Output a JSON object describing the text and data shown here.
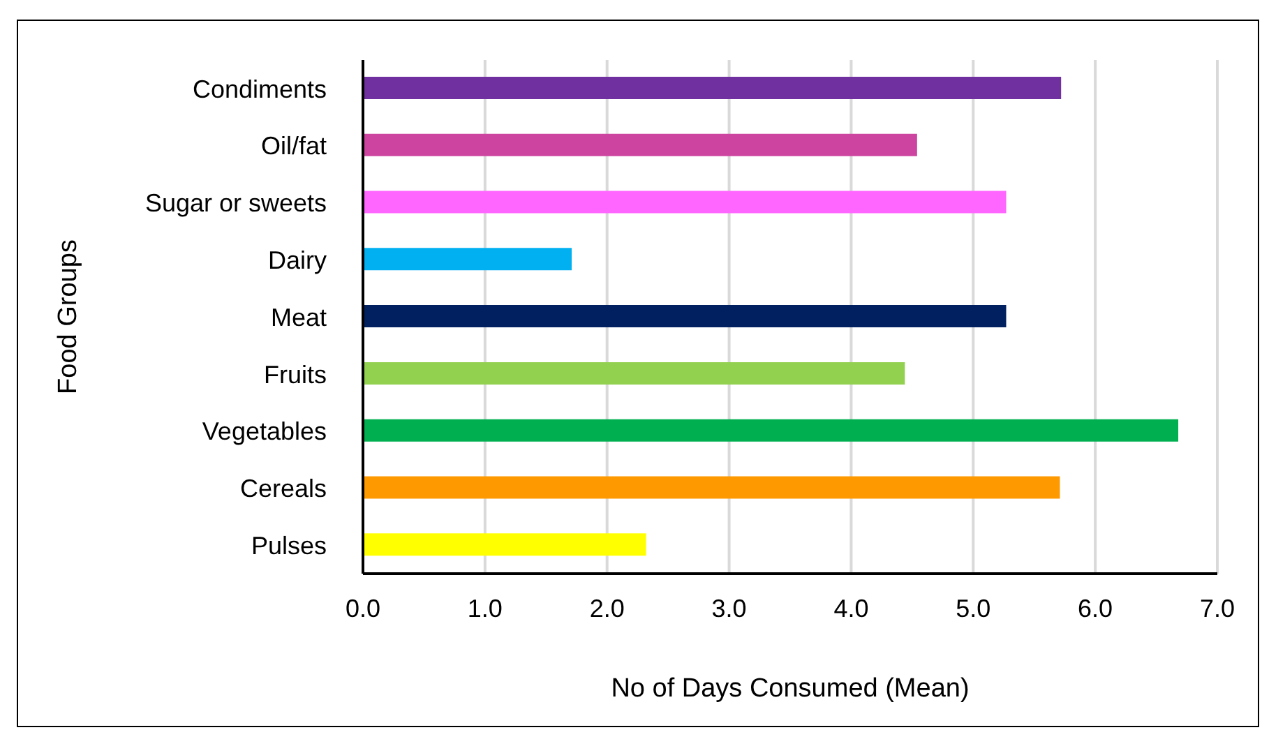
{
  "chart_data": {
    "type": "bar",
    "orientation": "horizontal",
    "xlabel": "No of Days  Consumed (Mean)",
    "ylabel": "Food Groups",
    "categories": [
      "Condiments",
      "Oil/fat",
      "Sugar or sweets",
      "Dairy",
      "Meat",
      "Fruits",
      "Vegetables",
      "Cereals",
      "Pulses"
    ],
    "values": [
      5.72,
      4.54,
      5.27,
      1.71,
      5.27,
      4.44,
      6.68,
      5.71,
      2.32
    ],
    "colors": [
      "#7030a0",
      "#cc44a0",
      "#ff66ff",
      "#00b0f0",
      "#002060",
      "#92d050",
      "#00b050",
      "#ff9900",
      "#ffff00"
    ],
    "xlim": [
      0,
      7
    ],
    "xticks": [
      {
        "value": 0,
        "label": "0.0"
      },
      {
        "value": 1,
        "label": "1.0"
      },
      {
        "value": 2,
        "label": "2.0"
      },
      {
        "value": 3,
        "label": "3.0"
      },
      {
        "value": 4,
        "label": "4.0"
      },
      {
        "value": 5,
        "label": "5.0"
      },
      {
        "value": 6,
        "label": "6.0"
      },
      {
        "value": 7,
        "label": "7.0"
      }
    ],
    "grid": "x",
    "legend": false
  }
}
